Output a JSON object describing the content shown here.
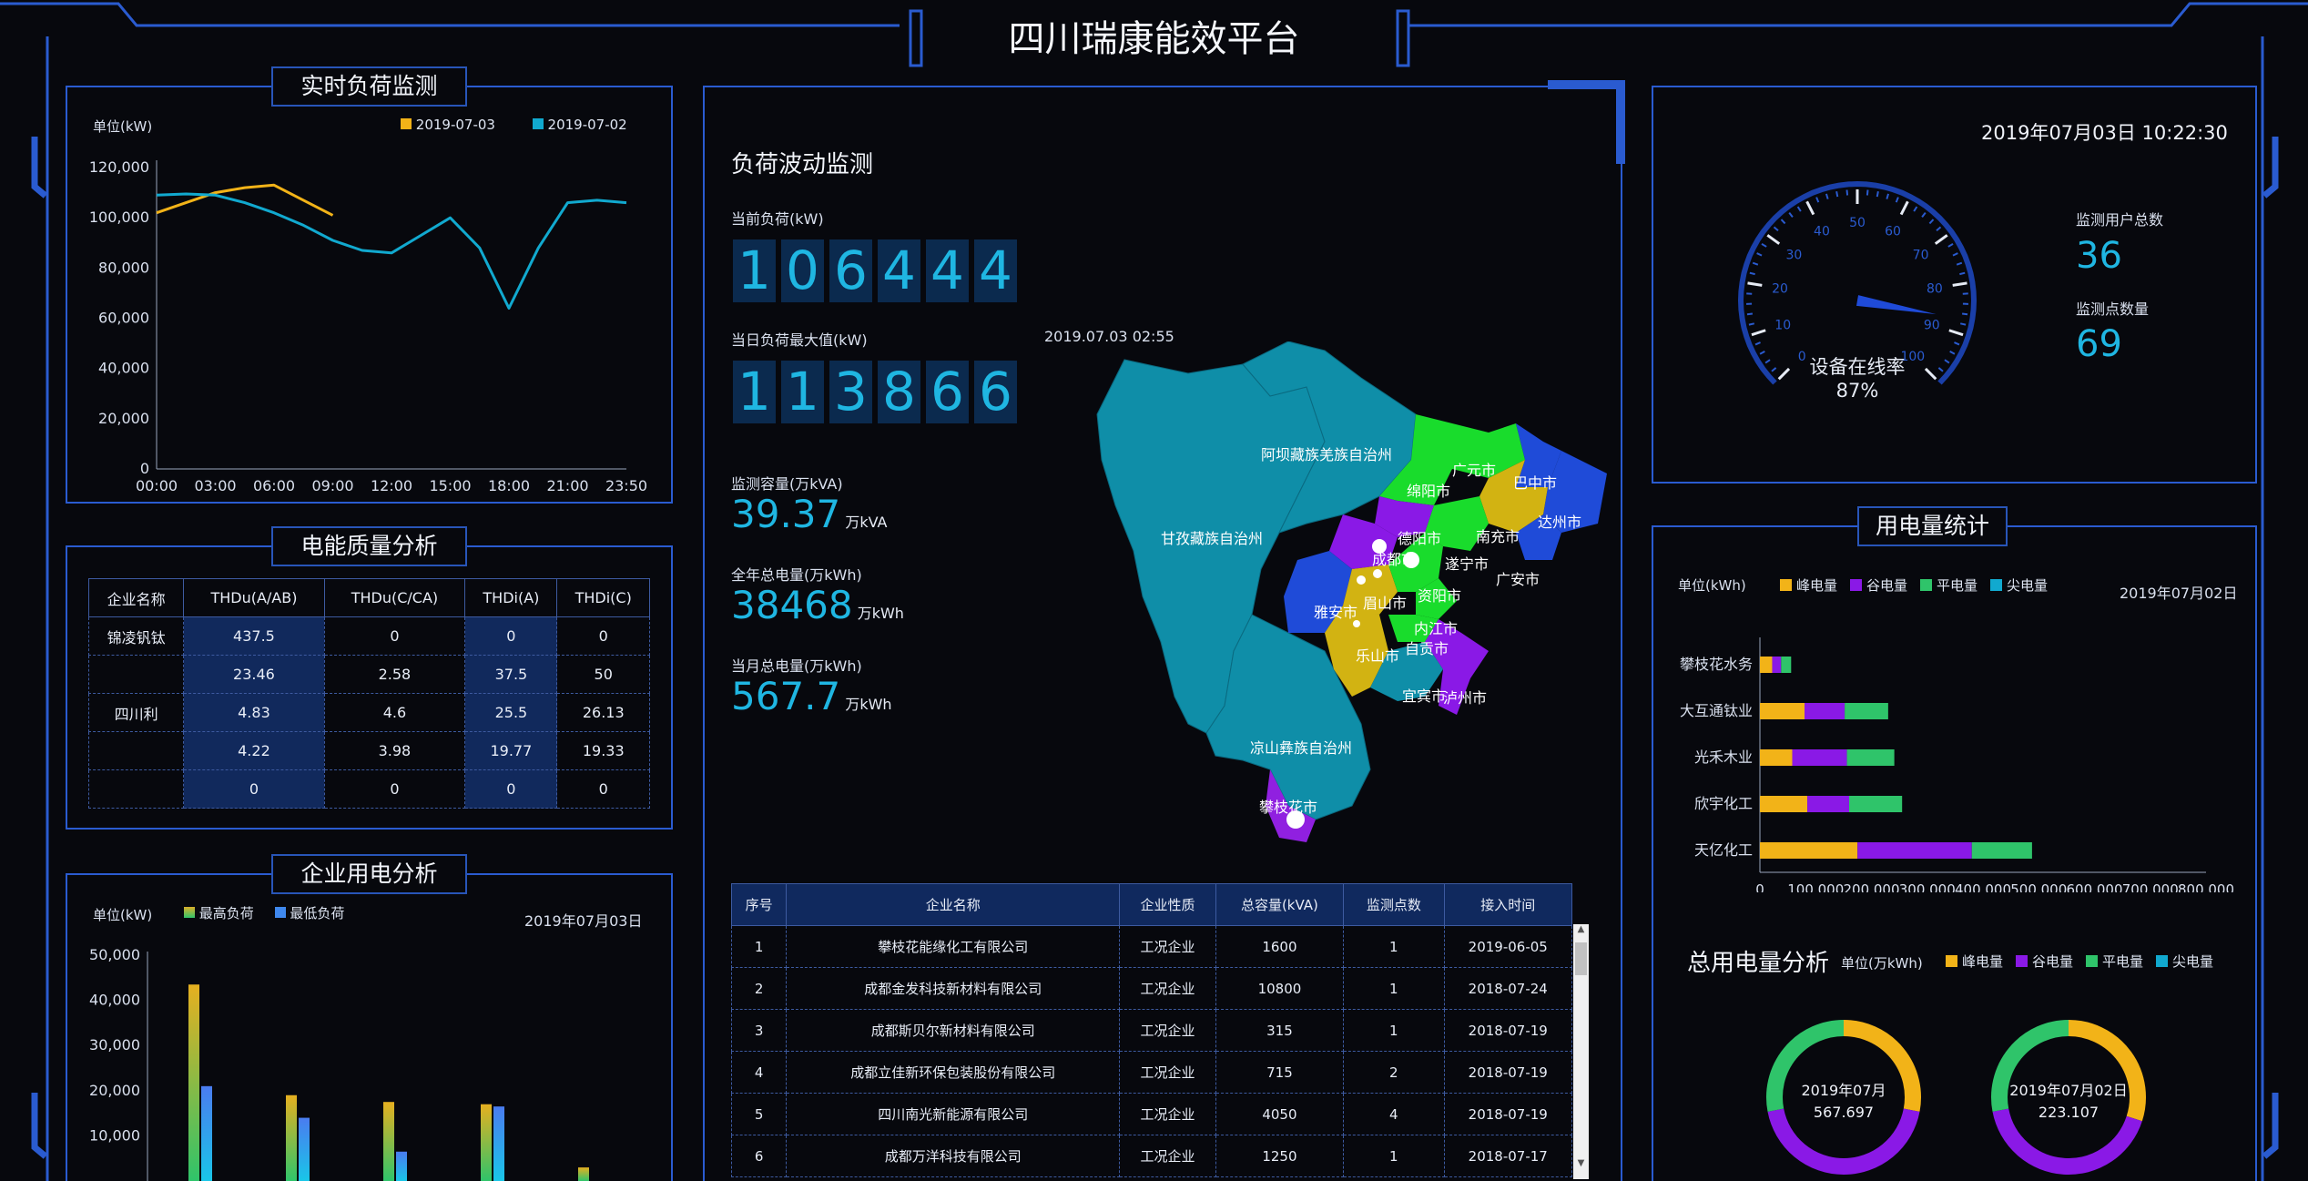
{
  "header": {
    "title": "四川瑞康能效平台"
  },
  "realtime": {
    "title": "实时负荷监测",
    "unit": "单位(kW)",
    "legend": [
      {
        "name": "2019-07-03",
        "color": "#f2b318"
      },
      {
        "name": "2019-07-02",
        "color": "#11a9cf"
      }
    ],
    "yticks": [
      "120,000",
      "100,000",
      "80,000",
      "60,000",
      "40,000",
      "20,000",
      "0"
    ],
    "xticks": [
      "00:00",
      "03:00",
      "06:00",
      "09:00",
      "12:00",
      "15:00",
      "18:00",
      "21:00",
      "23:50"
    ]
  },
  "chart_data": [
    {
      "type": "line",
      "title": "实时负荷监测",
      "ylabel": "单位(kW)",
      "ylim": [
        0,
        120000
      ],
      "x": [
        "00:00",
        "01:30",
        "03:00",
        "04:30",
        "06:00",
        "07:30",
        "09:00",
        "10:30",
        "12:00",
        "13:30",
        "15:00",
        "16:30",
        "18:00",
        "19:30",
        "21:00",
        "22:30",
        "23:50"
      ],
      "series": [
        {
          "name": "2019-07-03",
          "values": [
            102000,
            106000,
            110000,
            112000,
            113000,
            107000,
            101000,
            null,
            null,
            null,
            null,
            null,
            null,
            null,
            null,
            null,
            null
          ]
        },
        {
          "name": "2019-07-02",
          "values": [
            109000,
            109500,
            109000,
            106000,
            102000,
            97000,
            91000,
            87000,
            86000,
            93000,
            100000,
            88000,
            64000,
            88000,
            106000,
            107000,
            106000
          ]
        }
      ]
    },
    {
      "type": "bar",
      "title": "企业用电分析",
      "ylabel": "单位(kW)",
      "ylim": [
        0,
        50000
      ],
      "categories": [
        "",
        "",
        "",
        "",
        ""
      ],
      "series": [
        {
          "name": "最高负荷",
          "values": [
            43500,
            19000,
            17500,
            17000,
            3000
          ]
        },
        {
          "name": "最低负荷",
          "values": [
            21000,
            14000,
            6500,
            16500,
            0
          ]
        }
      ]
    },
    {
      "type": "bar",
      "title": "用电量统计",
      "ylabel": "单位(kWh)",
      "xlim": [
        0,
        800000
      ],
      "categories": [
        "攀枝花水务",
        "大互通钛业",
        "光禾木业",
        "欣宇化工",
        "天亿化工"
      ],
      "series": [
        {
          "name": "峰电量",
          "values": [
            22000,
            80000,
            58000,
            85000,
            175000
          ]
        },
        {
          "name": "谷电量",
          "values": [
            16000,
            72000,
            98000,
            75000,
            205000
          ]
        },
        {
          "name": "平电量",
          "values": [
            18000,
            78000,
            85000,
            95000,
            108000
          ]
        },
        {
          "name": "尖电量",
          "values": [
            0,
            0,
            0,
            0,
            0
          ]
        }
      ]
    },
    {
      "type": "pie",
      "title": "2019年07月",
      "values": [
        567.697
      ],
      "series": [
        {
          "name": "峰电量",
          "values": [
            0.28
          ]
        },
        {
          "name": "谷电量",
          "values": [
            0.44
          ]
        },
        {
          "name": "平电量",
          "values": [
            0.28
          ]
        },
        {
          "name": "尖电量",
          "values": [
            0
          ]
        }
      ]
    },
    {
      "type": "pie",
      "title": "2019年07月02日",
      "values": [
        223.107
      ],
      "series": [
        {
          "name": "峰电量",
          "values": [
            0.3
          ]
        },
        {
          "name": "谷电量",
          "values": [
            0.42
          ]
        },
        {
          "name": "平电量",
          "values": [
            0.28
          ]
        },
        {
          "name": "尖电量",
          "values": [
            0
          ]
        }
      ]
    }
  ],
  "quality": {
    "title": "电能质量分析",
    "headers": [
      "企业名称",
      "THDu(A/AB)",
      "THDu(C/CA)",
      "THDi(A)",
      "THDi(C)"
    ],
    "rows": [
      [
        "锦凌钒钛",
        "437.5",
        "0",
        "0",
        "0"
      ],
      [
        "",
        "23.46",
        "2.58",
        "37.5",
        "50"
      ],
      [
        "四川利",
        "4.83",
        "4.6",
        "25.5",
        "26.13"
      ],
      [
        "",
        "4.22",
        "3.98",
        "19.77",
        "19.33"
      ],
      [
        "",
        "0",
        "0",
        "0",
        "0"
      ]
    ]
  },
  "enterprise": {
    "title": "企业用电分析",
    "unit": "单位(kW)",
    "date": "2019年07月03日",
    "legend": [
      {
        "name": "最高负荷"
      },
      {
        "name": "最低负荷"
      }
    ],
    "yticks": [
      "50,000",
      "40,000",
      "30,000",
      "20,000",
      "10,000"
    ]
  },
  "fluct": {
    "title": "负荷波动监测",
    "current_label": "当前负荷(kW)",
    "current": "106444",
    "max_label": "当日负荷最大值(kW)",
    "max": "113866",
    "max_time": "2019.07.03 02:55",
    "cap_label": "监测容量(万kVA)",
    "cap": "39.37",
    "cap_unit": "万kVA",
    "year_label": "全年总电量(万kWh)",
    "year": "38468",
    "year_unit": "万kWh",
    "month_label": "当月总电量(万kWh)",
    "month": "567.7",
    "month_unit": "万kWh"
  },
  "map": {
    "regions": [
      "阿坝藏族羌族自治州",
      "甘孜藏族自治州",
      "凉山彝族自治州",
      "攀枝花市",
      "绵阳市",
      "广元市",
      "巴中市",
      "达州市",
      "南充市",
      "广安市",
      "德阳市",
      "成都市",
      "遂宁市",
      "雅安市",
      "眉山市",
      "资阳市",
      "乐山市",
      "内江市",
      "自贡市",
      "宜宾市",
      "泸州市"
    ]
  },
  "table": {
    "headers": [
      "序号",
      "企业名称",
      "企业性质",
      "总容量(kVA)",
      "监测点数",
      "接入时间"
    ],
    "rows": [
      [
        "1",
        "攀枝花能缘化工有限公司",
        "工况企业",
        "1600",
        "1",
        "2019-06-05"
      ],
      [
        "2",
        "成都金发科技新材料有限公司",
        "工况企业",
        "10800",
        "1",
        "2018-07-24"
      ],
      [
        "3",
        "成都斯贝尔新材料有限公司",
        "工况企业",
        "315",
        "1",
        "2018-07-19"
      ],
      [
        "4",
        "成都立佳新环保包装股份有限公司",
        "工况企业",
        "715",
        "2",
        "2018-07-19"
      ],
      [
        "5",
        "四川南光新能源有限公司",
        "工况企业",
        "4050",
        "4",
        "2018-07-19"
      ],
      [
        "6",
        "成都万洋科技有限公司",
        "工况企业",
        "1250",
        "1",
        "2018-07-17"
      ]
    ]
  },
  "gauge": {
    "datetime": "2019年07月03日 10:22:30",
    "label": "设备在线率",
    "value": "87%",
    "rate": 87,
    "ticks": [
      "0",
      "10",
      "20",
      "30",
      "40",
      "50",
      "60",
      "70",
      "80",
      "90",
      "100"
    ],
    "users_label": "监测用户总数",
    "users": "36",
    "points_label": "监测点数量",
    "points": "69"
  },
  "usage": {
    "title": "用电量统计",
    "unit": "单位(kWh)",
    "date": "2019年07月02日",
    "legend": [
      {
        "name": "峰电量",
        "color": "#f2b318"
      },
      {
        "name": "谷电量",
        "color": "#8a19e6"
      },
      {
        "name": "平电量",
        "color": "#2fc46a"
      },
      {
        "name": "尖电量",
        "color": "#11a9cf"
      }
    ],
    "xticks": [
      "0",
      "100,000",
      "200,000",
      "300,000",
      "400,000",
      "500,000",
      "600,000",
      "700,000",
      "800,000"
    ]
  },
  "total": {
    "title": "总用电量分析",
    "unit": "单位(万kWh)",
    "d1": "2019年07月",
    "v1": "567.697",
    "d2": "2019年07月02日",
    "v2": "223.107"
  }
}
